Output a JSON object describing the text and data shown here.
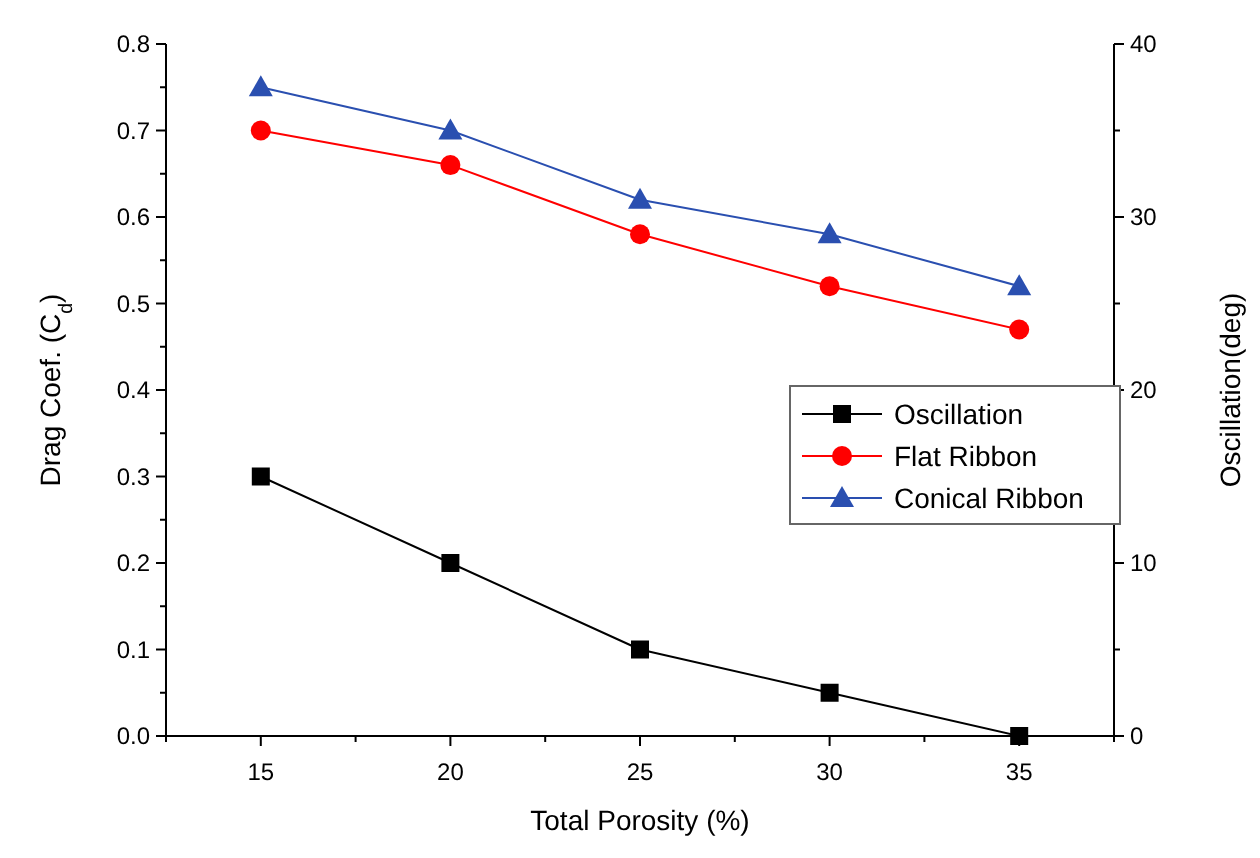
{
  "chart_data": {
    "type": "line",
    "xlabel": "Total Porosity (%)",
    "ylabel": "Drag Coef. (C$_{d}$)",
    "y2label": "Oscillation(deg)",
    "x": [
      15,
      20,
      25,
      30,
      35
    ],
    "xlim": [
      12.5,
      37.5
    ],
    "xticks": [
      15,
      20,
      25,
      30,
      35
    ],
    "ylim": [
      0,
      0.8
    ],
    "yticks": [
      {
        "value": 0,
        "label": "0.0"
      },
      0.1,
      0.2,
      0.3,
      0.4,
      0.5,
      0.6,
      0.7,
      0.8
    ],
    "y2lim": [
      0,
      40
    ],
    "y2ticks": [
      0,
      10,
      20,
      30,
      40
    ],
    "series": [
      {
        "name": "Oscillation",
        "color": "#000000",
        "marker": "square",
        "axis": "y2",
        "values": [
          15,
          10,
          5,
          2.5,
          0
        ]
      },
      {
        "name": "Flat Ribbon",
        "color": "#ff0000",
        "marker": "circle",
        "values": [
          0.7,
          0.66,
          0.58,
          0.52,
          0.47
        ]
      },
      {
        "name": "Conical Ribbon",
        "color": "#2a4fb0",
        "marker": "triangle",
        "values": [
          0.75,
          0.7,
          0.62,
          0.58,
          0.52
        ]
      }
    ],
    "legend": "right",
    "grid": false
  }
}
